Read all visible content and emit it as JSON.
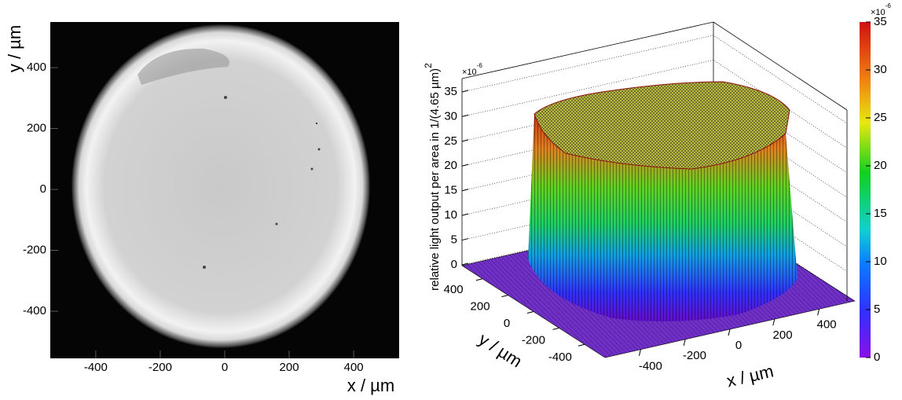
{
  "chart_data": [
    {
      "type": "image",
      "xlabel": "x / µm",
      "ylabel": "y / µm",
      "xlim": [
        -541,
        541
      ],
      "ylim": [
        -555,
        550
      ],
      "xticks": [
        -400,
        -200,
        0,
        200,
        400
      ],
      "yticks": [
        -400,
        -200,
        0,
        200,
        400
      ]
    },
    {
      "type": "surface3d",
      "xlabel": "x / µm",
      "ylabel": "y / µm",
      "zlabel": "relative light output per area  in  1/(4.65 µm)",
      "zlabel_exponent": "2",
      "xlim": [
        -560,
        560
      ],
      "ylim": [
        -560,
        560
      ],
      "zlim": [
        0,
        37.7
      ],
      "xticks": [
        -400,
        -200,
        0,
        200,
        400
      ],
      "yticks": [
        -400,
        -200,
        0,
        200,
        400
      ],
      "zticks": [
        0,
        5,
        10,
        15,
        20,
        25,
        30,
        35
      ],
      "z_multiplier": "×10",
      "z_multiplier_exponent": "-6",
      "colorbar": {
        "lim": [
          0,
          35
        ],
        "ticks": [
          0,
          5,
          10,
          15,
          20,
          25,
          30,
          35
        ],
        "multiplier": "×10",
        "multiplier_exponent": "-6"
      }
    }
  ]
}
